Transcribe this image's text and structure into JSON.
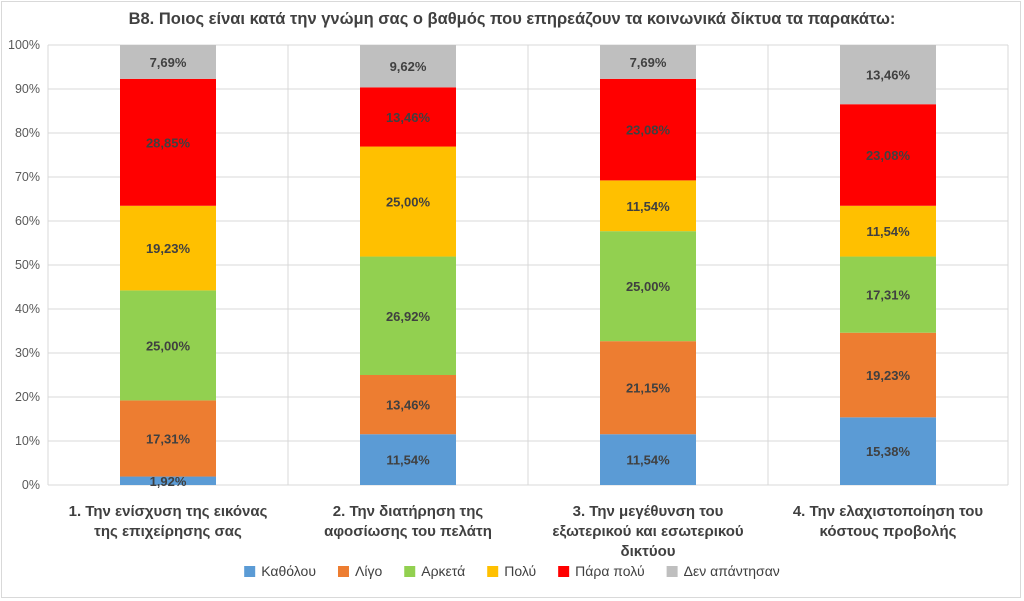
{
  "chart_data": {
    "type": "bar",
    "stacked": true,
    "percent": true,
    "title": "B8. Ποιος είναι κατά την γνώμη σας ο βαθμός που επηρεάζουν τα κοινωνικά δίκτυα τα παρακάτω:",
    "xlabel": "",
    "ylabel": "",
    "ylim": [
      0,
      100
    ],
    "yticks": [
      "0%",
      "10%",
      "20%",
      "30%",
      "40%",
      "50%",
      "60%",
      "70%",
      "80%",
      "90%",
      "100%"
    ],
    "grid": true,
    "legend_position": "bottom",
    "categories": [
      [
        "1. Την ενίσχυση της εικόνας",
        "της επιχείρησης σας"
      ],
      [
        "2. Την διατήρηση της",
        "αφοσίωσης του πελάτη"
      ],
      [
        "3. Την μεγέθυνση του",
        "εξωτερικού  και εσωτερικού",
        "δικτύου"
      ],
      [
        "4. Την ελαχιστοποίηση του",
        "κόστους προβολής"
      ]
    ],
    "series": [
      {
        "name": "Καθόλου",
        "color": "#5b9bd5",
        "values": [
          1.92,
          11.54,
          11.54,
          15.38
        ],
        "labels": [
          "1,92%",
          "11,54%",
          "11,54%",
          "15,38%"
        ]
      },
      {
        "name": "Λίγο",
        "color": "#ed7d31",
        "values": [
          17.31,
          13.46,
          21.15,
          19.23
        ],
        "labels": [
          "17,31%",
          "13,46%",
          "21,15%",
          "19,23%"
        ]
      },
      {
        "name": "Αρκετά",
        "color": "#92d050",
        "values": [
          25.0,
          26.92,
          25.0,
          17.31
        ],
        "labels": [
          "25,00%",
          "26,92%",
          "25,00%",
          "17,31%"
        ]
      },
      {
        "name": "Πολύ",
        "color": "#ffc000",
        "values": [
          19.23,
          25.0,
          11.54,
          11.54
        ],
        "labels": [
          "19,23%",
          "25,00%",
          "11,54%",
          "11,54%"
        ]
      },
      {
        "name": "Πάρα πολύ",
        "color": "#ff0000",
        "values": [
          28.85,
          13.46,
          23.08,
          23.08
        ],
        "labels": [
          "28,85%",
          "13,46%",
          "23,08%",
          "23,08%"
        ]
      },
      {
        "name": "Δεν απάντησαν",
        "color": "#bfbfbf",
        "values": [
          7.69,
          9.62,
          7.69,
          13.46
        ],
        "labels": [
          "7,69%",
          "9,62%",
          "7,69%",
          "13,46%"
        ]
      }
    ]
  }
}
